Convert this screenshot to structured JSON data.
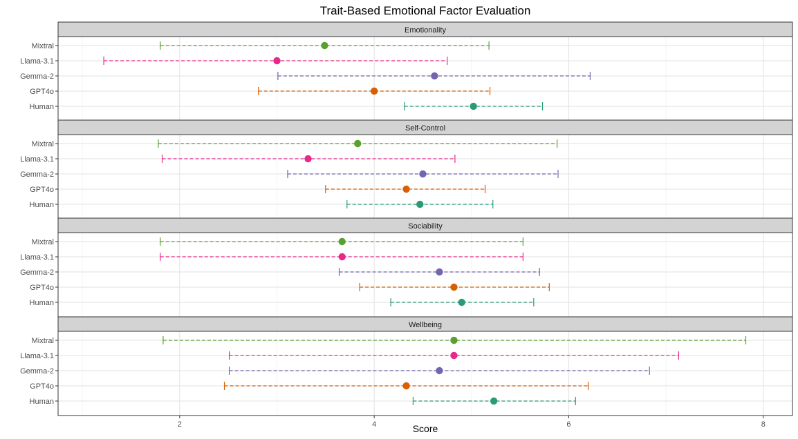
{
  "chart_data": {
    "type": "errorbar",
    "title": "Trait-Based Emotional Factor Evaluation",
    "xlabel": "Score",
    "ylabel": "",
    "xlim": [
      0.75,
      8.3
    ],
    "xticks": [
      2,
      4,
      6,
      8
    ],
    "grid": true,
    "legend": "none",
    "categories": [
      "Mixtral",
      "Llama-3.1",
      "Gemma-2",
      "GPT4o",
      "Human"
    ],
    "colors": {
      "Mixtral": "#5aa02c",
      "Llama-3.1": "#e7298a",
      "Gemma-2": "#7565b0",
      "GPT4o": "#d95f02",
      "Human": "#2a9b78"
    },
    "panels": [
      {
        "name": "Emotionality",
        "rows": [
          {
            "model": "Mixtral",
            "mean": 3.49,
            "low": 1.8,
            "high": 5.18
          },
          {
            "model": "Llama-3.1",
            "mean": 3.0,
            "low": 1.22,
            "high": 4.75
          },
          {
            "model": "Gemma-2",
            "mean": 4.62,
            "low": 3.01,
            "high": 6.22
          },
          {
            "model": "GPT4o",
            "mean": 4.0,
            "low": 2.81,
            "high": 5.19
          },
          {
            "model": "Human",
            "mean": 5.02,
            "low": 4.31,
            "high": 5.73
          }
        ]
      },
      {
        "name": "Self-Control",
        "rows": [
          {
            "model": "Mixtral",
            "mean": 3.83,
            "low": 1.78,
            "high": 5.88
          },
          {
            "model": "Llama-3.1",
            "mean": 3.32,
            "low": 1.82,
            "high": 4.83
          },
          {
            "model": "Gemma-2",
            "mean": 4.5,
            "low": 3.11,
            "high": 5.89
          },
          {
            "model": "GPT4o",
            "mean": 4.33,
            "low": 3.5,
            "high": 5.14
          },
          {
            "model": "Human",
            "mean": 4.47,
            "low": 3.72,
            "high": 5.22
          }
        ]
      },
      {
        "name": "Sociability",
        "rows": [
          {
            "model": "Mixtral",
            "mean": 3.67,
            "low": 1.8,
            "high": 5.53
          },
          {
            "model": "Llama-3.1",
            "mean": 3.67,
            "low": 1.8,
            "high": 5.53
          },
          {
            "model": "Gemma-2",
            "mean": 4.67,
            "low": 3.64,
            "high": 5.7
          },
          {
            "model": "GPT4o",
            "mean": 4.82,
            "low": 3.85,
            "high": 5.8
          },
          {
            "model": "Human",
            "mean": 4.9,
            "low": 4.17,
            "high": 5.64
          }
        ]
      },
      {
        "name": "Wellbeing",
        "rows": [
          {
            "model": "Mixtral",
            "mean": 4.82,
            "low": 1.83,
            "high": 7.82
          },
          {
            "model": "Llama-3.1",
            "mean": 4.82,
            "low": 2.51,
            "high": 7.13
          },
          {
            "model": "Gemma-2",
            "mean": 4.67,
            "low": 2.51,
            "high": 6.83
          },
          {
            "model": "GPT4o",
            "mean": 4.33,
            "low": 2.46,
            "high": 6.2
          },
          {
            "model": "Human",
            "mean": 5.23,
            "low": 4.4,
            "high": 6.07
          }
        ]
      }
    ]
  }
}
